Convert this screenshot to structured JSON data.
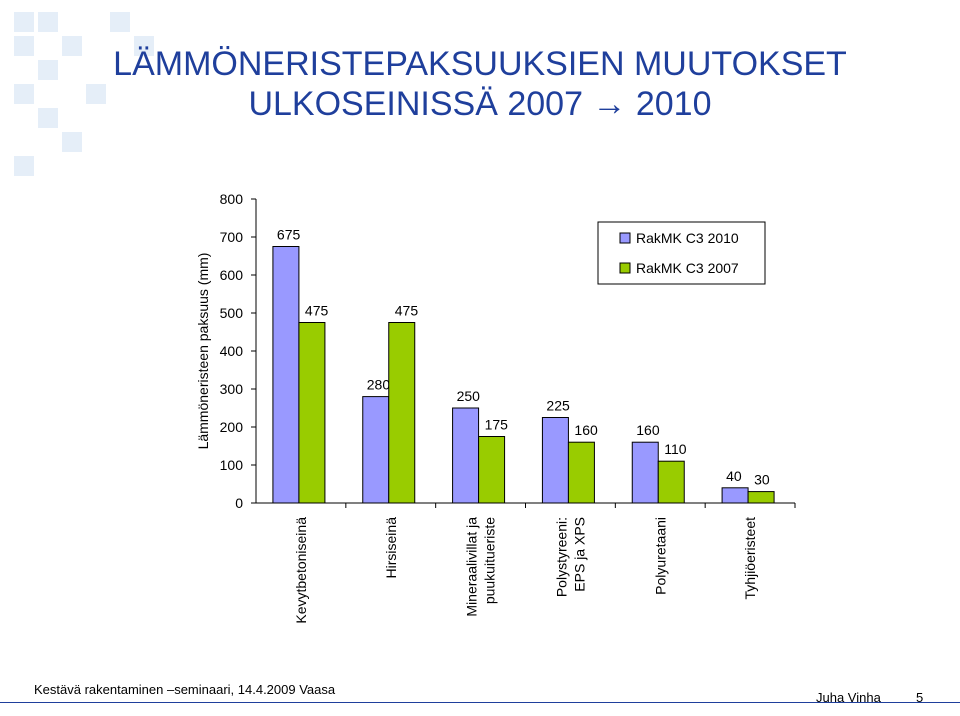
{
  "slide": {
    "title_line1": "LÄMMÖNERISTEPAKSUUKSIEN MUUTOKSET",
    "title_line2": "ULKOSEINISSÄ 2007 → 2010",
    "footer_left": "Kestävä rakentaminen –seminaari, 14.4.2009 Vaasa",
    "footer_author": "Juha Vinha",
    "page_number": "5"
  },
  "colors": {
    "series_2010": "#9999ff",
    "series_2007": "#99cc00",
    "title": "#1f3f9c"
  },
  "chart_data": {
    "type": "bar",
    "title": "",
    "xlabel": "",
    "ylabel": "Lämmöneristeen paksuus (mm)",
    "ylim": [
      0,
      800
    ],
    "yticks": [
      0,
      100,
      200,
      300,
      400,
      500,
      600,
      700,
      800
    ],
    "grid": false,
    "legend_position": "top-right",
    "categories": [
      [
        "Kevytbetoniseinä"
      ],
      [
        "Hirsiseinä"
      ],
      [
        "Mineraalivillat ja",
        "puukuitueriste"
      ],
      [
        "Polystyreeni:",
        "EPS ja XPS"
      ],
      [
        "Polyuretaani"
      ],
      [
        "Tyhjiöeristeet"
      ]
    ],
    "series": [
      {
        "name": "RakMK C3 2010",
        "values": [
          675,
          280,
          250,
          225,
          160,
          40
        ]
      },
      {
        "name": "RakMK C3 2007",
        "values": [
          475,
          475,
          175,
          160,
          110,
          30
        ]
      }
    ]
  }
}
